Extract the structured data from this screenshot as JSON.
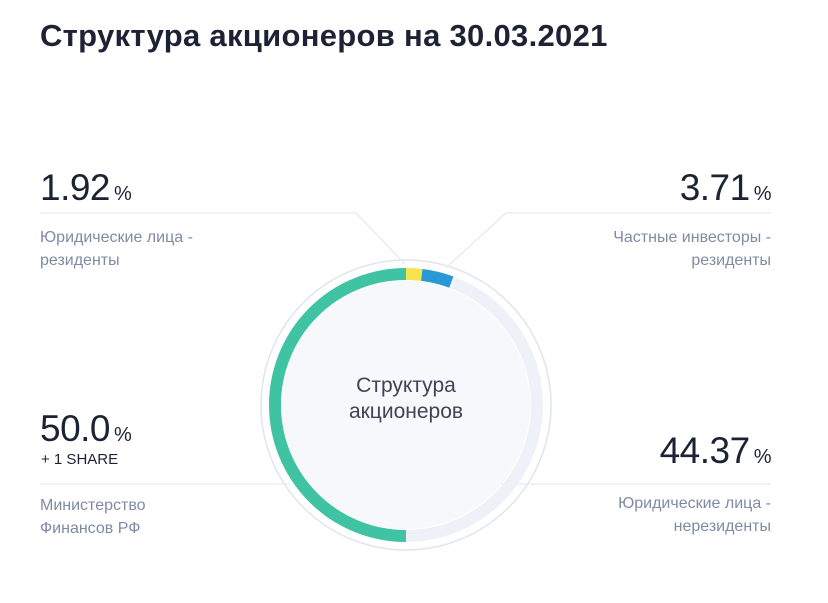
{
  "title": "Структура акционеров на 30.03.2021",
  "center_label": "Структура акционеров",
  "percent_sign": "%",
  "shares": {
    "legal_res": {
      "value": "1.92",
      "label": "Юридические лица - резиденты"
    },
    "private_res": {
      "value": "3.71",
      "label": "Частные инвесторы - резиденты"
    },
    "minfin": {
      "value": "50.0",
      "note": "+ 1 SHARE",
      "label": "Министерство Финансов РФ"
    },
    "legal_nonres": {
      "value": "44.37",
      "label": "Юридические лица - нерезиденты"
    }
  },
  "colors": {
    "minfin": "#3fc3a2",
    "legal_res": "#f5e44f",
    "private_res": "#2899d6",
    "legal_nonres": "#eef2f8"
  },
  "chart_data": {
    "type": "pie",
    "title": "Структура акционеров на 30.03.2021",
    "categories": [
      "Министерство Финансов РФ",
      "Юридические лица - резиденты",
      "Частные инвесторы - резиденты",
      "Юридические лица - нерезиденты"
    ],
    "values": [
      50.0,
      1.92,
      3.71,
      44.37
    ],
    "unit": "%"
  }
}
